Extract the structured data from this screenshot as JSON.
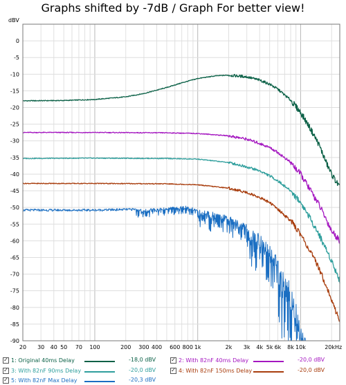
{
  "chart_data": {
    "type": "line",
    "title": "Graphs shifted by -7dB / Graph For better view!",
    "y_unit": "dBV",
    "x_unit": "kHz",
    "x_scale": "log",
    "xlim": [
      20,
      24000
    ],
    "ylim": [
      -90,
      5
    ],
    "grid": true,
    "x_ticks": [
      {
        "v": 20,
        "label": "20"
      },
      {
        "v": 30,
        "label": "30"
      },
      {
        "v": 40,
        "label": "40"
      },
      {
        "v": 50,
        "label": "50"
      },
      {
        "v": 70,
        "label": "70"
      },
      {
        "v": 100,
        "label": "100"
      },
      {
        "v": 200,
        "label": "200"
      },
      {
        "v": 300,
        "label": "300"
      },
      {
        "v": 400,
        "label": "400"
      },
      {
        "v": 600,
        "label": "600"
      },
      {
        "v": 800,
        "label": "800"
      },
      {
        "v": 1000,
        "label": "1k"
      },
      {
        "v": 2000,
        "label": "2k"
      },
      {
        "v": 3000,
        "label": "3k"
      },
      {
        "v": 4000,
        "label": "4k"
      },
      {
        "v": 5000,
        "label": "5k"
      },
      {
        "v": 6000,
        "label": "6k"
      },
      {
        "v": 8000,
        "label": "8k"
      },
      {
        "v": 10000,
        "label": "10k"
      },
      {
        "v": 20000,
        "label": "20kHz"
      }
    ],
    "y_ticks": [
      0,
      -5,
      -10,
      -15,
      -20,
      -25,
      -30,
      -35,
      -40,
      -45,
      -50,
      -55,
      -60,
      -65,
      -70,
      -75,
      -80,
      -85,
      -90
    ],
    "series": [
      {
        "name": "1: Original 40ms Delay",
        "value": "-18,0 dBV",
        "color": "#0a6046",
        "points": [
          [
            20,
            -18
          ],
          [
            50,
            -17.9
          ],
          [
            100,
            -17.6
          ],
          [
            200,
            -16.8
          ],
          [
            300,
            -15.8
          ],
          [
            500,
            -14.0
          ],
          [
            700,
            -12.6
          ],
          [
            1000,
            -11.3
          ],
          [
            1500,
            -10.5
          ],
          [
            2000,
            -10.3
          ],
          [
            3000,
            -10.8
          ],
          [
            4000,
            -11.8
          ],
          [
            5000,
            -13.0
          ],
          [
            6000,
            -14.5
          ],
          [
            8000,
            -17.8
          ],
          [
            10000,
            -21.5
          ],
          [
            12000,
            -25.5
          ],
          [
            15000,
            -31
          ],
          [
            18000,
            -37
          ],
          [
            20000,
            -40
          ],
          [
            24000,
            -44
          ]
        ]
      },
      {
        "name": "2: With 82nF 40ms Delay",
        "value": "-20,0 dBV",
        "color": "#a416c0",
        "points": [
          [
            20,
            -27.5
          ],
          [
            100,
            -27.5
          ],
          [
            500,
            -27.6
          ],
          [
            1000,
            -27.8
          ],
          [
            2000,
            -28.5
          ],
          [
            3000,
            -29.5
          ],
          [
            4000,
            -30.8
          ],
          [
            5000,
            -32
          ],
          [
            6000,
            -33.5
          ],
          [
            8000,
            -36.5
          ],
          [
            10000,
            -40
          ],
          [
            12000,
            -44
          ],
          [
            15000,
            -49
          ],
          [
            18000,
            -54
          ],
          [
            20000,
            -57
          ],
          [
            24000,
            -60
          ]
        ]
      },
      {
        "name": "3: With 82nF 90ms Delay",
        "value": "-20,0 dBV",
        "color": "#2e9e9c",
        "points": [
          [
            20,
            -35.3
          ],
          [
            100,
            -35.2
          ],
          [
            500,
            -35.3
          ],
          [
            1000,
            -35.5
          ],
          [
            2000,
            -36.5
          ],
          [
            3000,
            -37.8
          ],
          [
            4000,
            -39
          ],
          [
            5000,
            -40.5
          ],
          [
            6000,
            -42
          ],
          [
            8000,
            -45
          ],
          [
            10000,
            -48.5
          ],
          [
            12000,
            -52.5
          ],
          [
            15000,
            -58
          ],
          [
            18000,
            -63
          ],
          [
            20000,
            -66
          ],
          [
            24000,
            -72
          ]
        ]
      },
      {
        "name": "4: With 82nF 150ms Delay",
        "value": "-20,0 dBV",
        "color": "#a83c0c",
        "points": [
          [
            20,
            -42.8
          ],
          [
            100,
            -42.8
          ],
          [
            500,
            -42.9
          ],
          [
            1000,
            -43.2
          ],
          [
            2000,
            -44.2
          ],
          [
            3000,
            -45.5
          ],
          [
            4000,
            -47
          ],
          [
            5000,
            -48.5
          ],
          [
            6000,
            -50.5
          ],
          [
            8000,
            -54
          ],
          [
            10000,
            -58
          ],
          [
            12000,
            -62.5
          ],
          [
            15000,
            -68
          ],
          [
            18000,
            -74
          ],
          [
            20000,
            -78
          ],
          [
            24000,
            -84
          ]
        ]
      },
      {
        "name": "5: With 82nF Max Delay",
        "value": "-20,3 dBV",
        "color": "#1a6ec2",
        "points": [
          [
            20,
            -50.8
          ],
          [
            100,
            -50.8
          ],
          [
            300,
            -50.5
          ],
          [
            500,
            -50.0
          ],
          [
            800,
            -49.5
          ],
          [
            1000,
            -50.5
          ],
          [
            1500,
            -51.5
          ],
          [
            2000,
            -52.5
          ],
          [
            3000,
            -55
          ],
          [
            4000,
            -58
          ],
          [
            5000,
            -61
          ],
          [
            6000,
            -65
          ],
          [
            7000,
            -69
          ],
          [
            8000,
            -73
          ],
          [
            9000,
            -78
          ],
          [
            10000,
            -83
          ],
          [
            11000,
            -88
          ],
          [
            12000,
            -90
          ]
        ]
      }
    ]
  },
  "legend": [
    {
      "check": "✓",
      "label": "1: Original 40ms Delay",
      "value": "-18,0 dBV",
      "color": "#0a6046"
    },
    {
      "check": "✓",
      "label": "2: With 82nF 40ms Delay",
      "value": "-20,0 dBV",
      "color": "#a416c0"
    },
    {
      "check": "✓",
      "label": "3: With 82nF 90ms Delay",
      "value": "-20,0 dBV",
      "color": "#2e9e9c"
    },
    {
      "check": "✓",
      "label": "4: With 82nF 150ms Delay",
      "value": "-20,0 dBV",
      "color": "#a83c0c"
    },
    {
      "check": "✓",
      "label": "5: With 82nF Max Delay",
      "value": "-20,3 dBV",
      "color": "#1a6ec2"
    }
  ]
}
